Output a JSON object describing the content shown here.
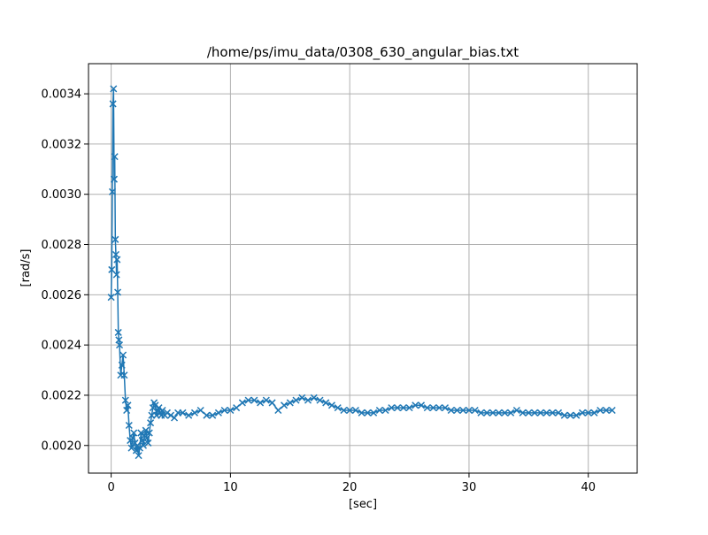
{
  "chart_data": {
    "type": "line",
    "title": "/home/ps/imu_data/0308_630_angular_bias.txt",
    "xlabel": "[sec]",
    "ylabel": "[rad/s]",
    "xlim": [
      -1.9,
      44.1
    ],
    "ylim": [
      0.00189,
      0.00352
    ],
    "grid": true,
    "marker": "x",
    "line_color": "#1f77b4",
    "x_ticks": [
      0,
      10,
      20,
      30,
      40
    ],
    "x_tick_labels": [
      "0",
      "10",
      "20",
      "30",
      "40"
    ],
    "y_ticks": [
      0.002,
      0.0022,
      0.0024,
      0.0026,
      0.0028,
      0.003,
      0.0032,
      0.0034
    ],
    "y_tick_labels": [
      "0.0020",
      "0.0022",
      "0.0024",
      "0.0026",
      "0.0028",
      "0.0030",
      "0.0032",
      "0.0034"
    ],
    "series": [
      {
        "x": [
          0.0,
          0.05,
          0.1,
          0.15,
          0.2,
          0.25,
          0.3,
          0.35,
          0.4,
          0.45,
          0.5,
          0.55,
          0.6,
          0.65,
          0.7,
          0.8,
          0.9,
          1.0,
          1.1,
          1.2,
          1.3,
          1.4,
          1.5,
          1.6,
          1.7,
          1.8,
          1.9,
          2.0,
          2.1,
          2.2,
          2.3,
          2.4,
          2.5,
          2.6,
          2.7,
          2.8,
          2.9,
          3.0,
          3.1,
          3.2,
          3.3,
          3.4,
          3.5,
          3.6,
          3.7,
          3.8,
          3.9,
          4.0,
          4.1,
          4.2,
          4.3,
          4.5,
          4.7,
          5.0,
          5.3,
          5.6,
          6.0,
          6.5,
          7.0,
          7.5,
          8.0,
          8.5,
          9.0,
          9.5,
          10.0,
          10.5,
          11.0,
          11.5,
          12.0,
          12.5,
          13.0,
          13.5,
          14.0,
          14.5,
          15.0,
          15.5,
          16.0,
          16.5,
          17.0,
          17.5,
          18.0,
          18.5,
          19.0,
          19.5,
          20.0,
          20.5,
          21.0,
          21.5,
          22.0,
          22.5,
          23.0,
          23.5,
          24.0,
          24.5,
          25.0,
          25.5,
          26.0,
          26.5,
          27.0,
          27.5,
          28.0,
          28.5,
          29.0,
          29.5,
          30.0,
          30.5,
          31.0,
          31.5,
          32.0,
          32.5,
          33.0,
          33.5,
          34.0,
          34.5,
          35.0,
          35.5,
          36.0,
          36.5,
          37.0,
          37.5,
          38.0,
          38.5,
          39.0,
          39.5,
          40.0,
          40.5,
          41.0,
          41.5,
          42.0
        ],
        "y": [
          0.00259,
          0.0027,
          0.00301,
          0.00336,
          0.00342,
          0.00306,
          0.00315,
          0.00282,
          0.00276,
          0.00268,
          0.00274,
          0.00261,
          0.00245,
          0.00242,
          0.0024,
          0.00228,
          0.00232,
          0.00236,
          0.00228,
          0.00218,
          0.00214,
          0.00216,
          0.00208,
          0.00202,
          0.00199,
          0.00203,
          0.00205,
          0.00201,
          0.00198,
          0.002,
          0.00196,
          0.00199,
          0.00205,
          0.00202,
          0.002,
          0.00204,
          0.00206,
          0.00203,
          0.00201,
          0.00205,
          0.00209,
          0.00212,
          0.00215,
          0.00217,
          0.00216,
          0.00212,
          0.00214,
          0.00215,
          0.00213,
          0.00212,
          0.00214,
          0.00212,
          0.00213,
          0.00212,
          0.00211,
          0.00213,
          0.00213,
          0.00212,
          0.00213,
          0.00214,
          0.00212,
          0.00212,
          0.00213,
          0.00214,
          0.00214,
          0.00215,
          0.00217,
          0.00218,
          0.00218,
          0.00217,
          0.00218,
          0.00217,
          0.00214,
          0.00216,
          0.00217,
          0.00218,
          0.00219,
          0.00218,
          0.00219,
          0.00218,
          0.00217,
          0.00216,
          0.00215,
          0.00214,
          0.00214,
          0.00214,
          0.00213,
          0.00213,
          0.00213,
          0.00214,
          0.00214,
          0.00215,
          0.00215,
          0.00215,
          0.00215,
          0.00216,
          0.00216,
          0.00215,
          0.00215,
          0.00215,
          0.00215,
          0.00214,
          0.00214,
          0.00214,
          0.00214,
          0.00214,
          0.00213,
          0.00213,
          0.00213,
          0.00213,
          0.00213,
          0.00213,
          0.00214,
          0.00213,
          0.00213,
          0.00213,
          0.00213,
          0.00213,
          0.00213,
          0.00213,
          0.00212,
          0.00212,
          0.00212,
          0.00213,
          0.00213,
          0.00213,
          0.00214,
          0.00214,
          0.00214
        ]
      }
    ]
  }
}
